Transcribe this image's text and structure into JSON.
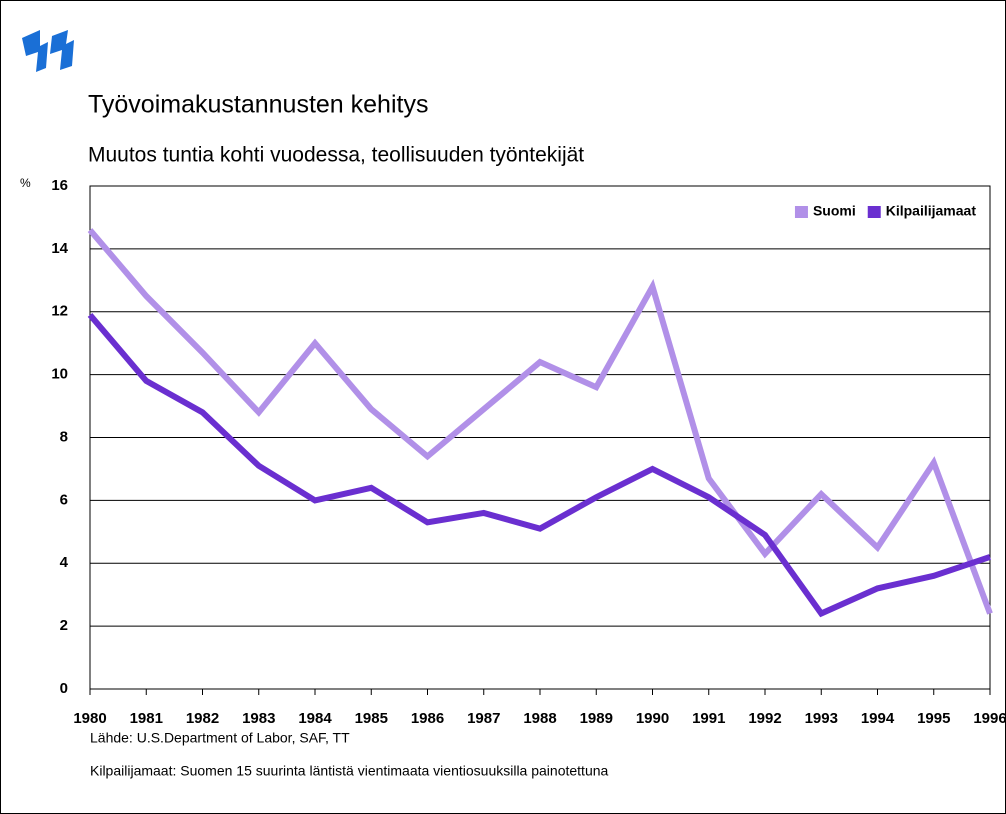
{
  "chart_data": {
    "type": "line",
    "title": "Työvoimakustannusten kehitys",
    "subtitle": "Muutos tuntia kohti vuodessa, teollisuuden työntekijät",
    "y_label": "%",
    "notes": [
      "Lähde: U.S.Department of Labor, SAF, TT",
      "Kilpailijamaat: Suomen 15 suurinta läntistä vientimaata vientiosuuksilla painotettuna"
    ],
    "x": [
      1980,
      1981,
      1982,
      1983,
      1984,
      1985,
      1986,
      1987,
      1988,
      1989,
      1990,
      1991,
      1992,
      1993,
      1994,
      1995,
      1996
    ],
    "xlim": [
      1980,
      1996
    ],
    "xticks": [
      1980,
      1981,
      1982,
      1983,
      1984,
      1985,
      1986,
      1987,
      1988,
      1989,
      1990,
      1991,
      1992,
      1993,
      1994,
      1995,
      1996
    ],
    "ylim": [
      0,
      16
    ],
    "yticks": [
      0,
      2,
      4,
      6,
      8,
      10,
      12,
      14,
      16
    ],
    "grid": true,
    "legend": "upper right",
    "series": [
      {
        "name": "Suomi",
        "color": "#b190e8",
        "values": [
          14.6,
          12.5,
          10.7,
          8.8,
          11.0,
          8.9,
          7.4,
          8.9,
          10.4,
          9.6,
          12.8,
          6.7,
          4.3,
          6.2,
          4.5,
          7.2,
          2.4
        ]
      },
      {
        "name": "Kilpailijamaat",
        "color": "#6a2fd0",
        "values": [
          11.9,
          9.8,
          8.8,
          7.1,
          6.0,
          6.4,
          5.3,
          5.6,
          5.1,
          6.1,
          7.0,
          6.1,
          4.9,
          2.4,
          3.2,
          3.6,
          4.2
        ]
      }
    ]
  }
}
